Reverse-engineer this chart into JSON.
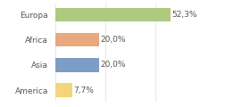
{
  "categories": [
    "America",
    "Asia",
    "Africa",
    "Europa"
  ],
  "values": [
    7.7,
    20.0,
    20.0,
    52.3
  ],
  "bar_colors": [
    "#f5d57a",
    "#7d9dc5",
    "#e8a97e",
    "#afc97e"
  ],
  "labels": [
    "7,7%",
    "20,0%",
    "20,0%",
    "52,3%"
  ],
  "xlim": [
    0,
    68
  ],
  "background_color": "#ffffff",
  "label_fontsize": 6.5,
  "tick_fontsize": 6.5,
  "grid_color": "#dddddd",
  "grid_xticks": [
    0,
    22.67,
    45.33,
    68.0
  ]
}
